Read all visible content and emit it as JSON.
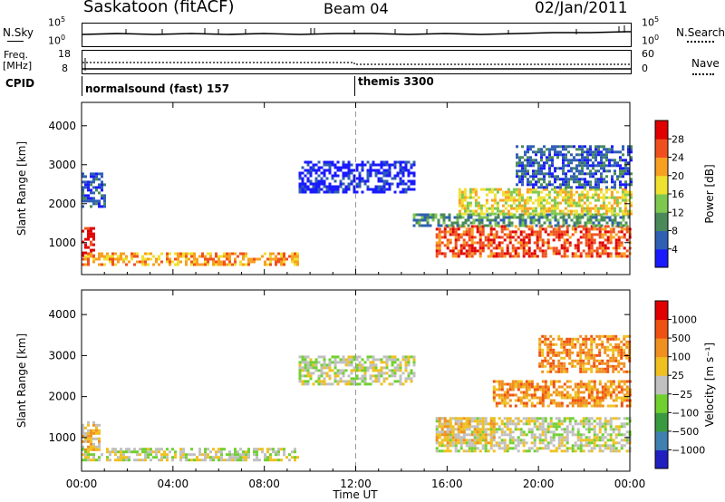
{
  "header": {
    "station": "Saskatoon (fitACF)",
    "beam": "Beam 04",
    "date": "02/Jan/2011"
  },
  "strip_labels": {
    "nsky": "N.Sky",
    "nsky_top": "10^5",
    "nsky_bottom": "10^0",
    "nsearch": "N.Search",
    "nsearch_top": "10^5",
    "nsearch_bottom": "10^0",
    "freq_line1": "Freq.",
    "freq_line2": "[MHz]",
    "freq_top": "18",
    "freq_bottom": "8",
    "nave": "Nave",
    "nave_top": "60",
    "nave_bottom": "0",
    "cpid": "CPID",
    "cpid_mode1": "normalsound (fast) 157",
    "cpid_mode2": "themis 3300"
  },
  "chart_data": [
    {
      "type": "heatmap",
      "name": "power",
      "ylabel": "Slant Range [km]",
      "xlabel": "",
      "x_ticks": [
        "00:00",
        "04:00",
        "08:00",
        "12:00",
        "16:00",
        "20:00",
        "00:00"
      ],
      "y_ticks": [
        1000,
        2000,
        3000,
        4000
      ],
      "ylim": [
        180,
        4600
      ],
      "xlim_hours": [
        0,
        24
      ],
      "colorbar": {
        "label": "Power [dB]",
        "ticks": [
          "4",
          "8",
          "12",
          "16",
          "20",
          "24",
          "28"
        ],
        "colors": [
          "#1a1aff",
          "#2f5fb3",
          "#4a8a5a",
          "#7ec850",
          "#f0e030",
          "#f8a020",
          "#f05020",
          "#e00000"
        ]
      },
      "regions": [
        {
          "t0": 0.0,
          "t1": 0.5,
          "r0": 650,
          "r1": 1400,
          "level": 7
        },
        {
          "t0": 0.0,
          "t1": 9.5,
          "r0": 420,
          "r1": 750,
          "level": 5
        },
        {
          "t0": 0.0,
          "t1": 1.0,
          "r0": 1950,
          "r1": 2800,
          "level": 1
        },
        {
          "t0": 9.5,
          "t1": 14.5,
          "r0": 2300,
          "r1": 3100,
          "level": 0
        },
        {
          "t0": 15.5,
          "t1": 24.0,
          "r0": 650,
          "r1": 1450,
          "level": 6
        },
        {
          "t0": 14.5,
          "t1": 24.0,
          "r0": 1450,
          "r1": 1750,
          "level": 2
        },
        {
          "t0": 16.5,
          "t1": 24.0,
          "r0": 1750,
          "r1": 2400,
          "level": 4
        },
        {
          "t0": 19.0,
          "t1": 24.0,
          "r0": 2400,
          "r1": 3500,
          "level": 1
        }
      ]
    },
    {
      "type": "heatmap",
      "name": "velocity",
      "ylabel": "Slant Range [km]",
      "xlabel": "Time UT",
      "x_ticks": [
        "00:00",
        "04:00",
        "08:00",
        "12:00",
        "16:00",
        "20:00",
        "00:00"
      ],
      "y_ticks": [
        1000,
        2000,
        3000,
        4000
      ],
      "ylim": [
        180,
        4600
      ],
      "xlim_hours": [
        0,
        24
      ],
      "colorbar": {
        "label": "Velocity [m s⁻¹]",
        "ticks": [
          "1000",
          "500",
          "100",
          "25",
          "−25",
          "−100",
          "−500",
          "−1000"
        ],
        "colors": [
          "#2020c0",
          "#4080b0",
          "#3a9a40",
          "#70d030",
          "#c0c0c0",
          "#f0c020",
          "#f09020",
          "#f05010",
          "#e00000"
        ]
      },
      "regions": [
        {
          "t0": 0.0,
          "t1": 0.8,
          "r0": 700,
          "r1": 1400,
          "level": 5
        },
        {
          "t0": 0.0,
          "t1": 9.5,
          "r0": 450,
          "r1": 750,
          "level": 4
        },
        {
          "t0": 9.5,
          "t1": 14.5,
          "r0": 2300,
          "r1": 3000,
          "level": 4
        },
        {
          "t0": 15.5,
          "t1": 24.0,
          "r0": 650,
          "r1": 1500,
          "level": 4
        },
        {
          "t0": 15.5,
          "t1": 18.0,
          "r0": 900,
          "r1": 1500,
          "level": 5
        },
        {
          "t0": 18.0,
          "t1": 24.0,
          "r0": 1800,
          "r1": 2400,
          "level": 6
        },
        {
          "t0": 20.0,
          "t1": 24.0,
          "r0": 2600,
          "r1": 3500,
          "level": 6
        }
      ]
    }
  ]
}
